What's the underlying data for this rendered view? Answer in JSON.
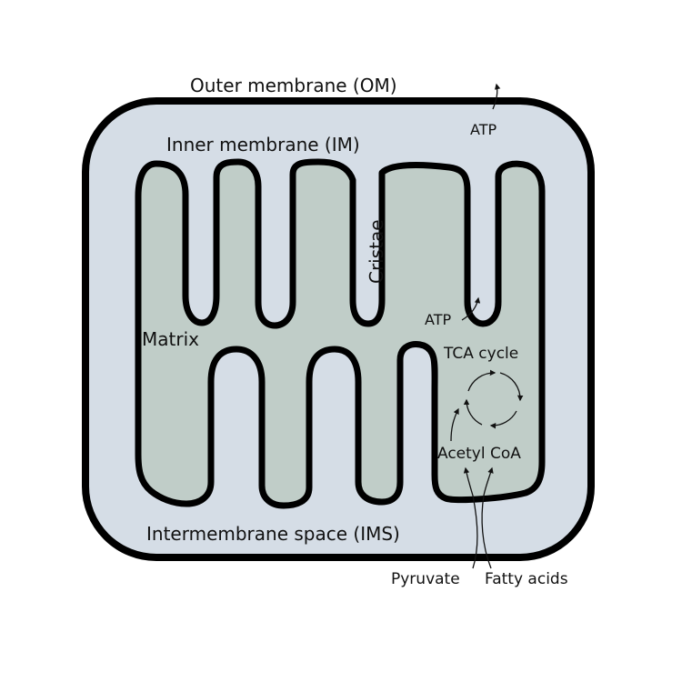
{
  "diagram": {
    "labels": {
      "outer_membrane": "Outer membrane (OM)",
      "inner_membrane": "Inner membrane (IM)",
      "cristae": "Cristae",
      "matrix": "Matrix",
      "intermembrane_space": "Intermembrane space (IMS)",
      "atp_outer": "ATP",
      "atp_inner": "ATP",
      "tca_cycle": "TCA cycle",
      "acetyl_coa": "Acetyl CoA",
      "pyruvate": "Pyruvate",
      "fatty_acids": "Fatty acids"
    },
    "colors": {
      "intermembrane_fill": "#d5dde6",
      "matrix_fill": "#c0cdc8",
      "membrane_stroke": "#000000",
      "text": "#111111"
    }
  }
}
